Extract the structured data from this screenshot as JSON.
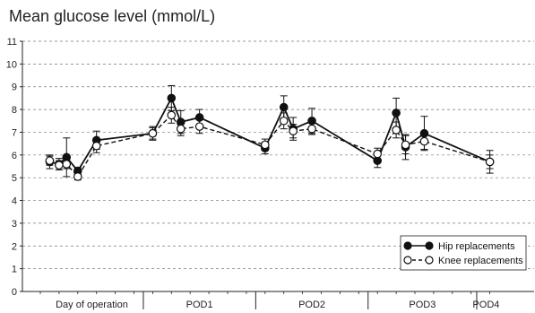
{
  "chart_data": {
    "type": "line",
    "title": "Mean glucose level (mmol/L)",
    "xlabel": "",
    "ylabel": "",
    "ylim": [
      0,
      11
    ],
    "y_ticks": [
      0,
      1,
      2,
      3,
      4,
      5,
      6,
      7,
      8,
      9,
      10,
      11
    ],
    "grid": "horizontal dashed",
    "legend_position": "bottom-right",
    "x_range": [
      0,
      24
    ],
    "x_groups": [
      {
        "label": "Day of operation",
        "start": 0,
        "end": 5.5
      },
      {
        "label": "POD1",
        "start": 5.5,
        "end": 11.5
      },
      {
        "label": "POD2",
        "start": 11.5,
        "end": 17.5
      },
      {
        "label": "POD3",
        "start": 17.5,
        "end": 23.3
      },
      {
        "label": "POD4",
        "start": 23.3,
        "end": 24.3
      }
    ],
    "series": [
      {
        "name": "Hip replacements",
        "style": "solid-filled",
        "x": [
          0.5,
          1.0,
          1.4,
          2.0,
          3.0,
          6.0,
          7.0,
          7.5,
          8.5,
          12.0,
          13.0,
          13.5,
          14.5,
          18.0,
          19.0,
          19.5,
          20.5,
          24.0
        ],
        "y": [
          5.7,
          5.6,
          5.9,
          5.3,
          6.65,
          6.95,
          8.5,
          7.45,
          7.65,
          6.3,
          8.1,
          7.15,
          7.5,
          5.75,
          7.85,
          6.35,
          6.95,
          5.7
        ],
        "err": [
          0.3,
          0.25,
          0.85,
          0.15,
          0.4,
          0.3,
          0.55,
          0.5,
          0.35,
          0.25,
          0.5,
          0.5,
          0.55,
          0.3,
          0.65,
          0.55,
          0.75,
          0.5
        ]
      },
      {
        "name": "Knee replacements",
        "style": "dashed-open",
        "x": [
          0.5,
          1.0,
          1.4,
          2.0,
          3.0,
          6.0,
          7.0,
          7.5,
          8.5,
          12.0,
          13.0,
          13.5,
          14.5,
          18.0,
          19.0,
          19.5,
          20.5,
          24.0
        ],
        "y": [
          5.75,
          5.55,
          5.6,
          5.05,
          6.4,
          6.95,
          7.75,
          7.15,
          7.25,
          6.45,
          7.5,
          7.05,
          7.15,
          6.05,
          7.1,
          6.45,
          6.6,
          5.7
        ],
        "err": [
          0.2,
          0.2,
          0.2,
          0.15,
          0.3,
          0.25,
          0.35,
          0.3,
          0.3,
          0.25,
          0.35,
          0.3,
          0.25,
          0.25,
          0.35,
          0.4,
          0.35,
          0.3
        ]
      }
    ]
  }
}
